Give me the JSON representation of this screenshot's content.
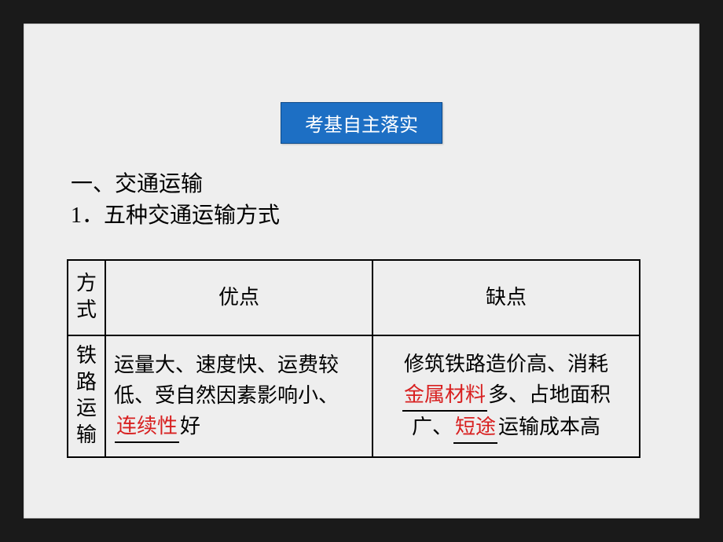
{
  "title_box": "考基自主落实",
  "heading_1": "一、交通运输",
  "heading_2": "1．五种交通运输方式",
  "table": {
    "header": {
      "method": "方式",
      "advantage": "优点",
      "disadvantage": "缺点"
    },
    "row1": {
      "method": "铁路运输",
      "adv_part1": "运量大、速度快、运费较低、受自然因素影响小、",
      "adv_fill": "连续性",
      "adv_part2": "好",
      "dis_part1": "修筑铁路造价高、消耗",
      "dis_fill1": "金属材料",
      "dis_part2": "多、占地面积广、",
      "dis_fill2": "短途",
      "dis_part3": "运输成本高"
    }
  },
  "colors": {
    "page_bg": "#1a1a1a",
    "slide_bg": "#eeeeee",
    "title_bg": "#1d6fc4",
    "title_text": "#ffffff",
    "body_text": "#000000",
    "fill_text": "#d82020",
    "border": "#000000"
  },
  "fonts": {
    "title_size": 24,
    "heading_size": 28,
    "table_size": 26
  }
}
